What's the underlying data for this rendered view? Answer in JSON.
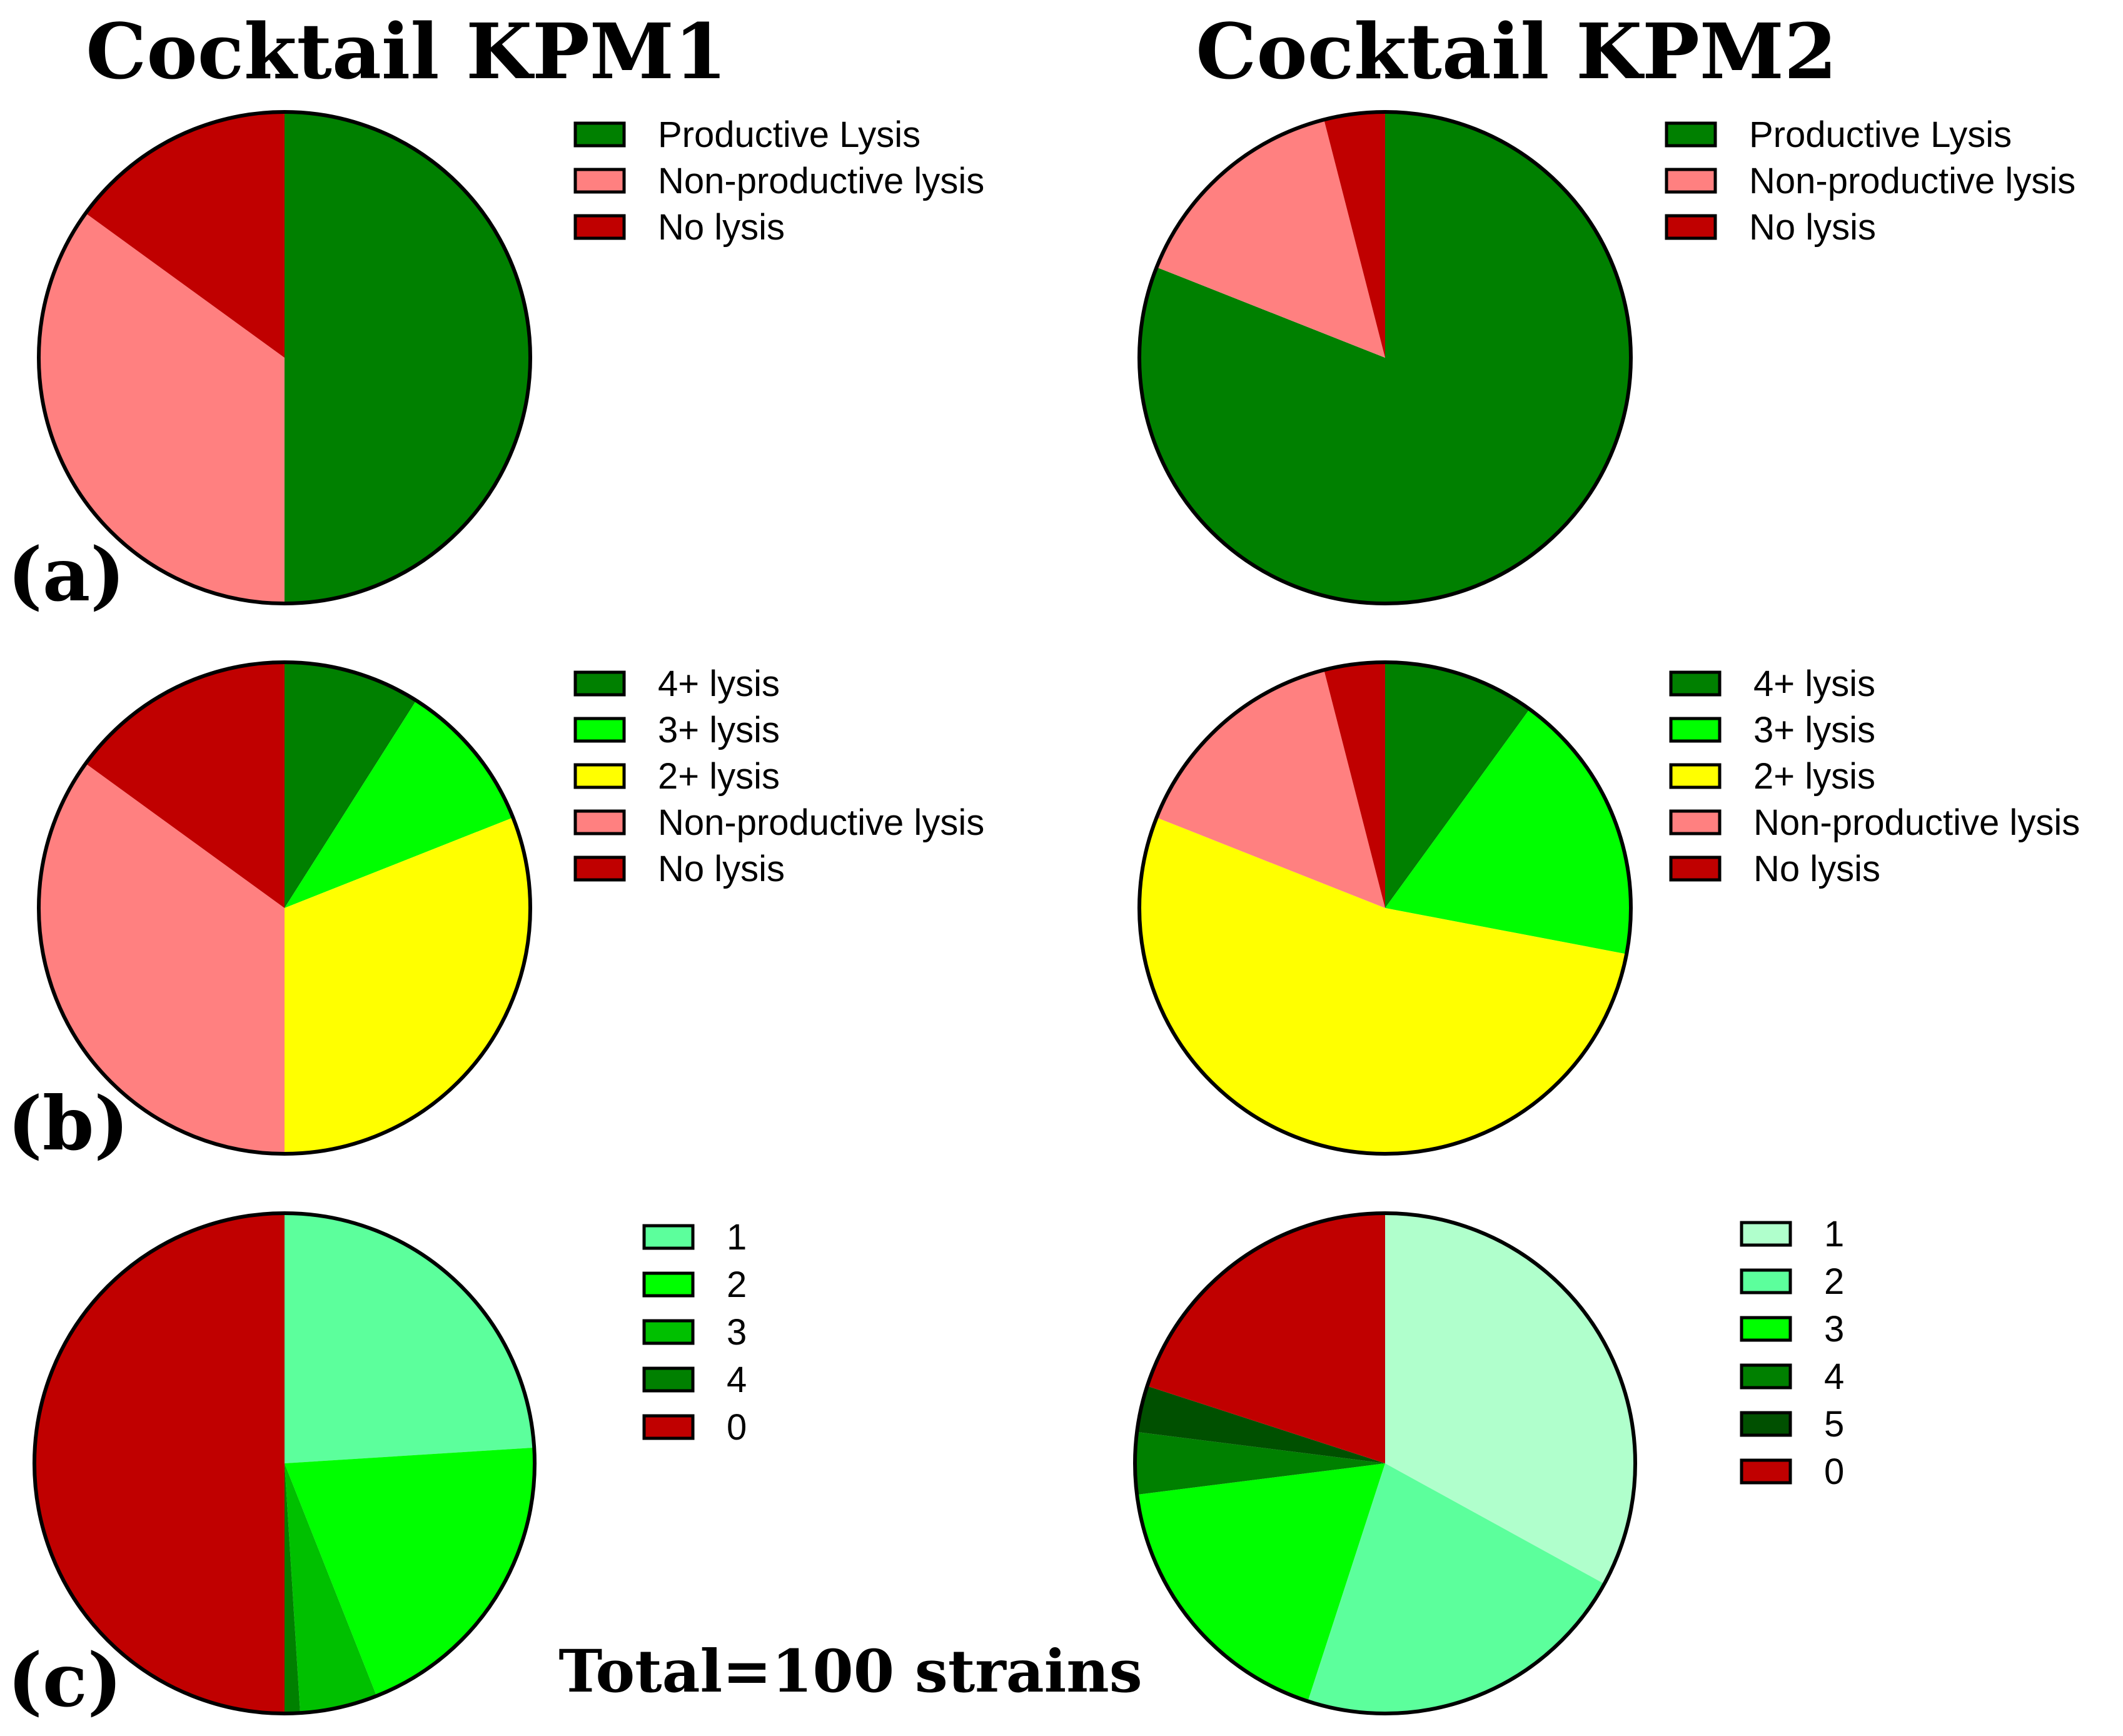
{
  "column_titles": [
    "Cocktail KPM1",
    "Cocktail KPM2"
  ],
  "panel_labels": [
    "(a)",
    "(b)",
    "(c)"
  ],
  "total_note": "Total=100 strains",
  "chart_data": [
    {
      "type": "pie",
      "title": "Cocktail KPM1",
      "panel": "(a)",
      "legend_position": "right",
      "start": "top-clockwise",
      "categories": [
        "Productive Lysis",
        "Non-productive lysis",
        "No lysis"
      ],
      "values": [
        50,
        35,
        15
      ],
      "colors": [
        "#008000",
        "#ff8080",
        "#c00000"
      ]
    },
    {
      "type": "pie",
      "title": "Cocktail KPM2",
      "panel": "(a)",
      "legend_position": "right",
      "start": "top-clockwise",
      "categories": [
        "Productive Lysis",
        "Non-productive lysis",
        "No lysis"
      ],
      "values": [
        81,
        15,
        4
      ],
      "colors": [
        "#008000",
        "#ff8080",
        "#c00000"
      ]
    },
    {
      "type": "pie",
      "title": "Cocktail KPM1",
      "panel": "(b)",
      "legend_position": "right",
      "start": "top-clockwise",
      "categories": [
        "4+ lysis",
        "3+ lysis",
        "2+ lysis",
        "Non-productive lysis",
        "No lysis"
      ],
      "values": [
        9,
        10,
        31,
        35,
        15
      ],
      "colors": [
        "#008000",
        "#00ff00",
        "#ffff00",
        "#ff8080",
        "#c00000"
      ]
    },
    {
      "type": "pie",
      "title": "Cocktail KPM2",
      "panel": "(b)",
      "legend_position": "right",
      "start": "top-clockwise",
      "categories": [
        "4+ lysis",
        "3+ lysis",
        "2+ lysis",
        "Non-productive lysis",
        "No lysis"
      ],
      "values": [
        10,
        18,
        53,
        15,
        4
      ],
      "colors": [
        "#008000",
        "#00ff00",
        "#ffff00",
        "#ff8080",
        "#c00000"
      ]
    },
    {
      "type": "pie",
      "title": "Cocktail KPM1",
      "panel": "(c)",
      "legend_position": "right",
      "start": "top-clockwise",
      "categories": [
        "1",
        "2",
        "3",
        "4",
        "0"
      ],
      "values": [
        24,
        20,
        5,
        1,
        50
      ],
      "colors": [
        "#5cff9c",
        "#00ff00",
        "#00c000",
        "#008000",
        "#c00000"
      ]
    },
    {
      "type": "pie",
      "title": "Cocktail KPM2",
      "panel": "(c)",
      "legend_position": "right",
      "start": "top-clockwise",
      "categories": [
        "1",
        "2",
        "3",
        "4",
        "5",
        "0"
      ],
      "values": [
        33,
        22,
        18,
        4,
        3,
        20
      ],
      "colors": [
        "#b0ffcc",
        "#5cff9c",
        "#00ff00",
        "#008000",
        "#005000",
        "#c00000"
      ]
    }
  ]
}
